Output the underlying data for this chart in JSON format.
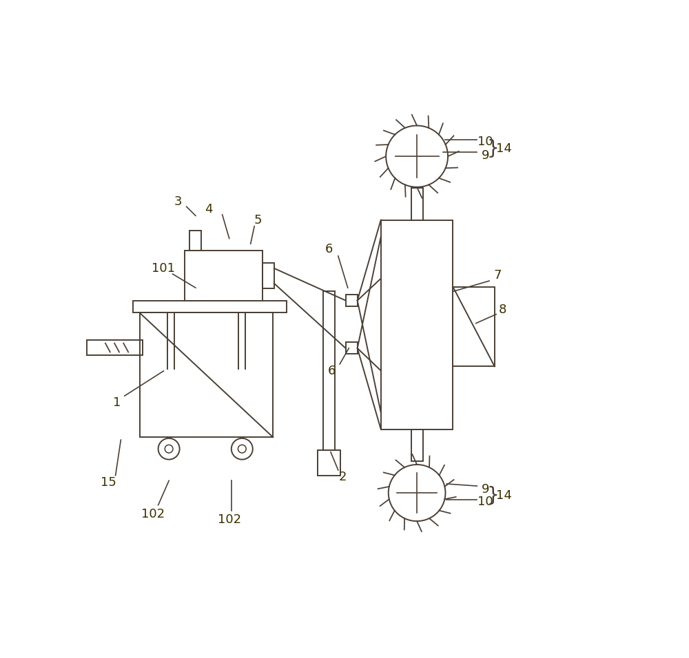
{
  "bg_color": "#ffffff",
  "line_color": "#4a3f35",
  "line_width": 1.4,
  "fig_width": 10.0,
  "fig_height": 9.56,
  "label_color": "#3a3000",
  "label_fs": 13
}
